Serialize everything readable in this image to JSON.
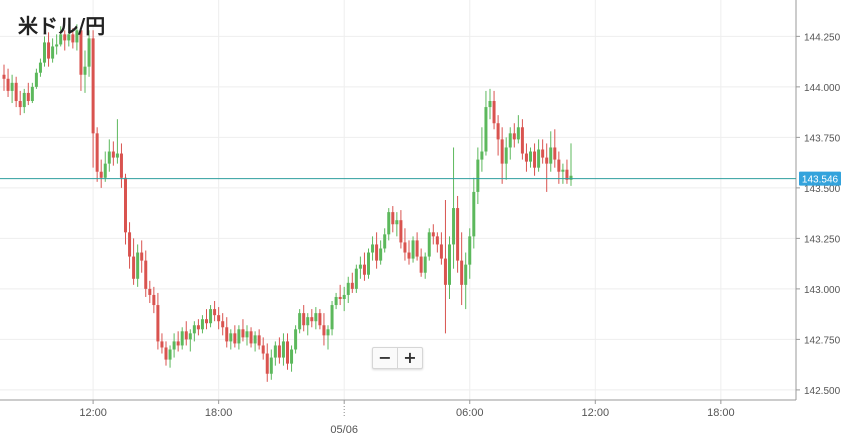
{
  "header": {
    "title": "米ドル/円"
  },
  "zoom": {
    "minus_label": "−",
    "plus_label": "+"
  },
  "colors": {
    "up": "#5cb85c",
    "down": "#d9534f",
    "price_line": "#2e9e9e",
    "price_tag": "#33a3dc",
    "grid": "#eeeeee"
  },
  "chart_data": {
    "type": "candlestick",
    "title": "米ドル/円",
    "x_ticks": [
      {
        "label": "12:00",
        "index": 22
      },
      {
        "label": "18:00",
        "index": 53
      },
      {
        "label": "",
        "index": 84
      },
      {
        "label": "06:00",
        "index": 115
      },
      {
        "label": "12:00",
        "index": 146
      },
      {
        "label": "18:00",
        "index": 177
      }
    ],
    "date_label": {
      "text": "05/06",
      "index": 84
    },
    "y_ticks": [
      142.5,
      142.75,
      143.0,
      143.25,
      143.5,
      143.75,
      144.0,
      144.25
    ],
    "y_tick_labels": [
      "142.500",
      "142.750",
      "143.000",
      "143.250",
      "143.500",
      "143.750",
      "144.000",
      "144.250"
    ],
    "ylim": [
      142.45,
      144.43
    ],
    "current_price": 143.546,
    "current_price_label": "143.546",
    "candles": [
      [
        144.06,
        144.11,
        143.98,
        144.04
      ],
      [
        144.04,
        144.09,
        143.95,
        143.98
      ],
      [
        143.98,
        144.06,
        143.92,
        144.02
      ],
      [
        144.02,
        144.05,
        143.9,
        143.93
      ],
      [
        143.93,
        143.98,
        143.86,
        143.9
      ],
      [
        143.9,
        143.99,
        143.87,
        143.97
      ],
      [
        143.97,
        144.02,
        143.91,
        143.93
      ],
      [
        143.93,
        144.02,
        143.92,
        144.0
      ],
      [
        144.0,
        144.09,
        143.99,
        144.07
      ],
      [
        144.07,
        144.14,
        144.05,
        144.12
      ],
      [
        144.12,
        144.25,
        144.1,
        144.22
      ],
      [
        144.22,
        144.27,
        144.1,
        144.14
      ],
      [
        144.14,
        144.24,
        144.12,
        144.2
      ],
      [
        144.2,
        144.26,
        144.16,
        144.21
      ],
      [
        144.21,
        144.3,
        144.2,
        144.26
      ],
      [
        144.26,
        144.28,
        144.18,
        144.23
      ],
      [
        144.23,
        144.31,
        144.2,
        144.26
      ],
      [
        144.26,
        144.29,
        144.19,
        144.22
      ],
      [
        144.22,
        144.31,
        144.18,
        144.28
      ],
      [
        144.28,
        144.29,
        143.98,
        144.06
      ],
      [
        144.06,
        144.18,
        143.97,
        144.1
      ],
      [
        144.1,
        144.28,
        144.05,
        144.24
      ],
      [
        144.24,
        144.28,
        143.6,
        143.77
      ],
      [
        143.77,
        143.8,
        143.53,
        143.58
      ],
      [
        143.58,
        143.64,
        143.5,
        143.55
      ],
      [
        143.55,
        143.68,
        143.53,
        143.62
      ],
      [
        143.62,
        143.74,
        143.58,
        143.68
      ],
      [
        143.68,
        143.73,
        143.61,
        143.65
      ],
      [
        143.65,
        143.84,
        143.62,
        143.67
      ],
      [
        143.67,
        143.72,
        143.5,
        143.55
      ],
      [
        143.55,
        143.57,
        143.22,
        143.28
      ],
      [
        143.28,
        143.33,
        143.1,
        143.16
      ],
      [
        143.16,
        143.25,
        143.02,
        143.05
      ],
      [
        143.05,
        143.22,
        143.01,
        143.18
      ],
      [
        143.18,
        143.24,
        143.08,
        143.14
      ],
      [
        143.14,
        143.19,
        142.96,
        143.0
      ],
      [
        143.0,
        143.04,
        142.93,
        142.97
      ],
      [
        142.97,
        143.01,
        142.88,
        142.92
      ],
      [
        142.92,
        142.98,
        142.7,
        142.74
      ],
      [
        142.74,
        142.78,
        142.68,
        142.71
      ],
      [
        142.71,
        142.74,
        142.62,
        142.65
      ],
      [
        142.65,
        142.72,
        142.61,
        142.7
      ],
      [
        142.7,
        142.78,
        142.66,
        142.74
      ],
      [
        142.74,
        142.79,
        142.69,
        142.72
      ],
      [
        142.72,
        142.81,
        142.7,
        142.79
      ],
      [
        142.79,
        142.84,
        142.72,
        142.75
      ],
      [
        142.75,
        142.8,
        142.69,
        142.78
      ],
      [
        142.78,
        142.84,
        142.74,
        142.82
      ],
      [
        142.82,
        142.85,
        142.77,
        142.8
      ],
      [
        142.8,
        142.87,
        142.78,
        142.85
      ],
      [
        142.85,
        142.9,
        142.8,
        142.83
      ],
      [
        142.83,
        142.92,
        142.81,
        142.9
      ],
      [
        142.9,
        142.94,
        142.84,
        142.87
      ],
      [
        142.87,
        142.91,
        142.8,
        142.84
      ],
      [
        142.84,
        142.88,
        142.77,
        142.81
      ],
      [
        142.81,
        142.86,
        142.71,
        142.74
      ],
      [
        142.74,
        142.8,
        142.7,
        142.78
      ],
      [
        142.78,
        142.82,
        142.71,
        142.73
      ],
      [
        142.73,
        142.82,
        142.7,
        142.8
      ],
      [
        142.8,
        142.85,
        142.74,
        142.76
      ],
      [
        142.76,
        142.82,
        142.72,
        142.79
      ],
      [
        142.79,
        142.81,
        142.71,
        142.73
      ],
      [
        142.73,
        142.79,
        142.69,
        142.77
      ],
      [
        142.77,
        142.8,
        142.7,
        142.72
      ],
      [
        142.72,
        142.76,
        142.65,
        142.68
      ],
      [
        142.68,
        142.73,
        142.54,
        142.58
      ],
      [
        142.58,
        142.7,
        142.55,
        142.66
      ],
      [
        142.66,
        142.74,
        142.62,
        142.72
      ],
      [
        142.72,
        142.76,
        142.63,
        142.66
      ],
      [
        142.66,
        142.78,
        142.62,
        142.74
      ],
      [
        142.74,
        142.78,
        142.6,
        142.63
      ],
      [
        142.63,
        142.72,
        142.59,
        142.7
      ],
      [
        142.7,
        142.82,
        142.68,
        142.8
      ],
      [
        142.8,
        142.9,
        142.78,
        142.88
      ],
      [
        142.88,
        142.92,
        142.79,
        142.82
      ],
      [
        142.82,
        142.88,
        142.77,
        142.86
      ],
      [
        142.86,
        142.9,
        142.81,
        142.84
      ],
      [
        142.84,
        142.91,
        142.8,
        142.88
      ],
      [
        142.88,
        142.9,
        142.8,
        142.82
      ],
      [
        142.82,
        142.88,
        142.72,
        142.77
      ],
      [
        142.77,
        142.82,
        142.7,
        142.8
      ],
      [
        142.8,
        142.94,
        142.77,
        142.92
      ],
      [
        142.92,
        142.98,
        142.9,
        142.96
      ],
      [
        142.96,
        143.02,
        142.92,
        142.95
      ],
      [
        142.95,
        143.01,
        142.89,
        142.97
      ],
      [
        142.97,
        143.06,
        142.93,
        143.03
      ],
      [
        143.03,
        143.08,
        142.98,
        143.0
      ],
      [
        143.0,
        143.12,
        142.98,
        143.1
      ],
      [
        143.1,
        143.16,
        143.05,
        143.12
      ],
      [
        143.12,
        143.18,
        143.04,
        143.07
      ],
      [
        143.07,
        143.2,
        143.05,
        143.18
      ],
      [
        143.18,
        143.26,
        143.14,
        143.22
      ],
      [
        143.22,
        143.28,
        143.1,
        143.14
      ],
      [
        143.14,
        143.24,
        143.12,
        143.2
      ],
      [
        143.2,
        143.3,
        143.18,
        143.27
      ],
      [
        143.27,
        143.4,
        143.24,
        143.38
      ],
      [
        143.38,
        143.41,
        143.28,
        143.32
      ],
      [
        143.32,
        143.38,
        143.26,
        143.34
      ],
      [
        143.34,
        143.39,
        143.2,
        143.23
      ],
      [
        143.23,
        143.3,
        143.14,
        143.18
      ],
      [
        143.18,
        143.24,
        143.12,
        143.15
      ],
      [
        143.15,
        143.26,
        143.13,
        143.24
      ],
      [
        143.24,
        143.28,
        143.14,
        143.16
      ],
      [
        143.16,
        143.2,
        143.06,
        143.08
      ],
      [
        143.08,
        143.18,
        143.05,
        143.16
      ],
      [
        143.16,
        143.3,
        143.14,
        143.28
      ],
      [
        143.28,
        143.32,
        143.22,
        143.26
      ],
      [
        143.26,
        143.28,
        143.18,
        143.22
      ],
      [
        143.22,
        143.28,
        143.12,
        143.15
      ],
      [
        143.15,
        143.44,
        142.78,
        143.02
      ],
      [
        143.02,
        143.26,
        142.95,
        143.22
      ],
      [
        143.22,
        143.7,
        143.1,
        143.4
      ],
      [
        143.4,
        143.46,
        143.08,
        143.14
      ],
      [
        143.14,
        143.28,
        142.92,
        143.02
      ],
      [
        143.02,
        143.18,
        142.9,
        143.12
      ],
      [
        143.12,
        143.3,
        143.05,
        143.26
      ],
      [
        143.26,
        143.55,
        143.2,
        143.48
      ],
      [
        143.48,
        143.7,
        143.42,
        143.64
      ],
      [
        143.64,
        143.8,
        143.58,
        143.68
      ],
      [
        143.68,
        143.98,
        143.66,
        143.9
      ],
      [
        143.9,
        143.99,
        143.84,
        143.93
      ],
      [
        143.93,
        143.98,
        143.79,
        143.82
      ],
      [
        143.82,
        143.86,
        143.66,
        143.74
      ],
      [
        143.74,
        143.8,
        143.52,
        143.62
      ],
      [
        143.62,
        143.75,
        143.54,
        143.7
      ],
      [
        143.7,
        143.8,
        143.64,
        143.77
      ],
      [
        143.77,
        143.82,
        143.7,
        143.74
      ],
      [
        143.74,
        143.86,
        143.72,
        143.8
      ],
      [
        143.8,
        143.84,
        143.64,
        143.67
      ],
      [
        143.67,
        143.72,
        143.58,
        143.63
      ],
      [
        143.63,
        143.7,
        143.6,
        143.68
      ],
      [
        143.68,
        143.72,
        143.56,
        143.6
      ],
      [
        143.6,
        143.74,
        143.58,
        143.69
      ],
      [
        143.69,
        143.74,
        143.62,
        143.65
      ],
      [
        143.65,
        143.72,
        143.48,
        143.62
      ],
      [
        143.62,
        143.78,
        143.58,
        143.7
      ],
      [
        143.7,
        143.79,
        143.6,
        143.64
      ],
      [
        143.64,
        143.68,
        143.52,
        143.58
      ],
      [
        143.58,
        143.62,
        143.52,
        143.59
      ],
      [
        143.59,
        143.64,
        143.52,
        143.54
      ],
      [
        143.54,
        143.72,
        143.51,
        143.56
      ]
    ]
  }
}
